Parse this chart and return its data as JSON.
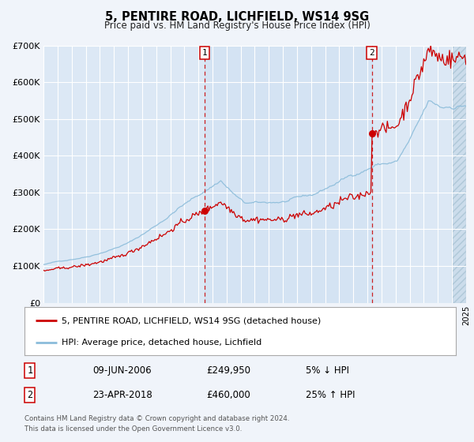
{
  "title": "5, PENTIRE ROAD, LICHFIELD, WS14 9SG",
  "subtitle": "Price paid vs. HM Land Registry's House Price Index (HPI)",
  "bg_color": "#f0f4fa",
  "plot_bg_color": "#dce8f5",
  "hatch_bg_color": "#c8d8e8",
  "grid_color": "#ffffff",
  "legend_label_red": "5, PENTIRE ROAD, LICHFIELD, WS14 9SG (detached house)",
  "legend_label_blue": "HPI: Average price, detached house, Lichfield",
  "annotation1_date": "09-JUN-2006",
  "annotation1_price": "£249,950",
  "annotation1_hpi": "5% ↓ HPI",
  "annotation2_date": "23-APR-2018",
  "annotation2_price": "£460,000",
  "annotation2_hpi": "25% ↑ HPI",
  "footnote1": "Contains HM Land Registry data © Crown copyright and database right 2024.",
  "footnote2": "This data is licensed under the Open Government Licence v3.0.",
  "xmin": 1995,
  "xmax": 2025,
  "ymin": 0,
  "ymax": 700000,
  "yticks": [
    0,
    100000,
    200000,
    300000,
    400000,
    500000,
    600000,
    700000
  ],
  "ytick_labels": [
    "£0",
    "£100K",
    "£200K",
    "£300K",
    "£400K",
    "£500K",
    "£600K",
    "£700K"
  ],
  "vline1_x": 2006.44,
  "vline2_x": 2018.31,
  "marker1_x": 2006.44,
  "marker1_y": 249950,
  "marker2_x": 2018.31,
  "marker2_y": 460000,
  "red_color": "#cc0000",
  "blue_color": "#8bbcda",
  "vline_color": "#cc0000"
}
